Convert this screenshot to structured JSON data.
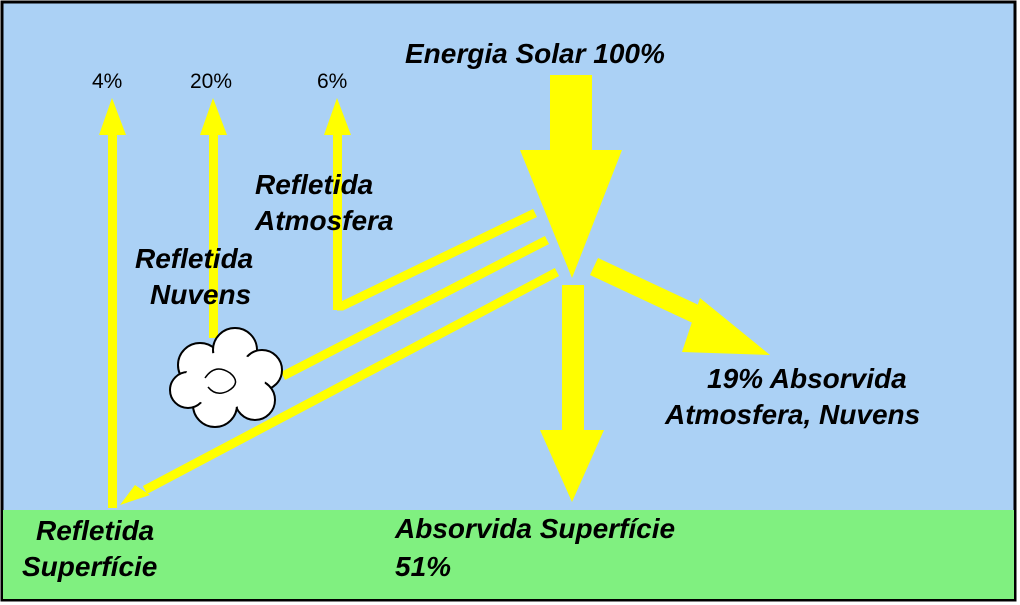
{
  "title": "Energia Solar 100%",
  "outgoing": [
    {
      "percent": "4%"
    },
    {
      "percent": "20%"
    },
    {
      "percent": "6%"
    }
  ],
  "labels": {
    "refletida_atmosfera": [
      "Refletida",
      "Atmosfera"
    ],
    "refletida_nuvens": [
      "Refletida",
      "Nuvens"
    ],
    "refletida_superficie": [
      "Refletida",
      "Superfície"
    ],
    "absorvida_superficie": [
      "Absorvida Superfície",
      "51%"
    ],
    "absorvida_atmosfera": [
      "19% Absorvida",
      "Atmosfera, Nuvens"
    ]
  }
}
